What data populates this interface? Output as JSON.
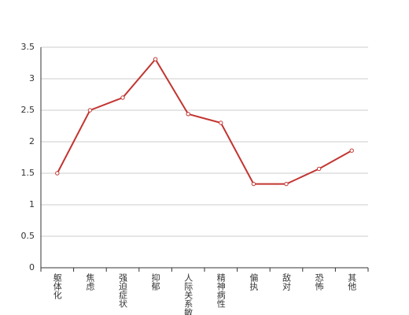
{
  "chart_data": {
    "type": "line",
    "categories": [
      "躯体化",
      "焦虑",
      "强迫症状",
      "抑郁",
      "人际关系敏感",
      "精神病性",
      "偏执",
      "敌对",
      "恐怖",
      "其他"
    ],
    "values": [
      1.5,
      2.5,
      2.7,
      3.31,
      2.44,
      2.3,
      1.33,
      1.33,
      1.57,
      1.86
    ],
    "color": "#c23531",
    "ylim": [
      0,
      3.5
    ],
    "yticks": [
      0,
      0.5,
      1,
      1.5,
      2,
      2.5,
      3,
      3.5
    ],
    "grid": true
  }
}
